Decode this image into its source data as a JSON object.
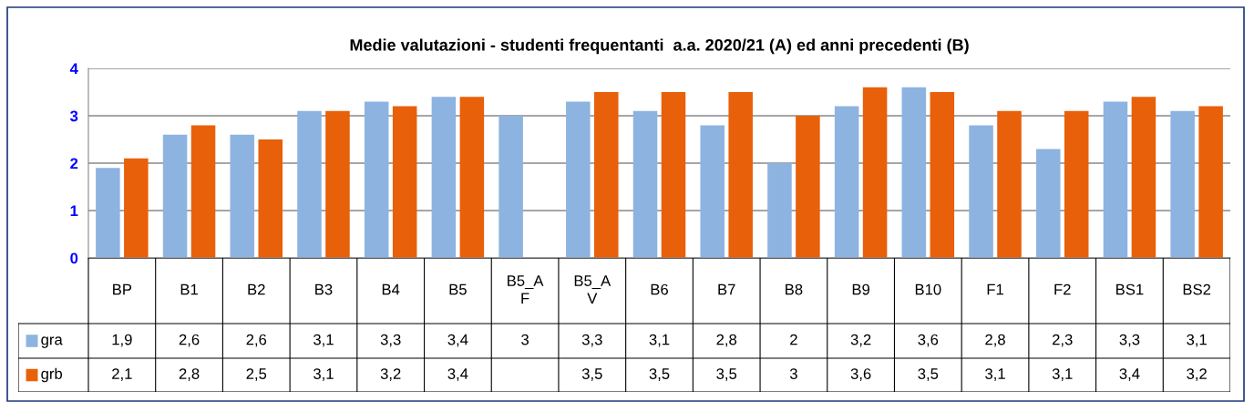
{
  "chart_data": {
    "type": "bar",
    "title": "Medie valutazioni - studenti frequentanti  a.a. 2020/21 (A) ed anni precedenti (B)",
    "categories": [
      "BP",
      "B1",
      "B2",
      "B3",
      "B4",
      "B5",
      "B5_AF",
      "B5_AV",
      "B6",
      "B7",
      "B8",
      "B9",
      "B10",
      "F1",
      "F2",
      "BS1",
      "BS2"
    ],
    "series": [
      {
        "name": "gra",
        "color": "#8db3e0",
        "values": [
          1.9,
          2.6,
          2.6,
          3.1,
          3.3,
          3.4,
          3,
          3.3,
          3.1,
          2.8,
          2,
          3.2,
          3.6,
          2.8,
          2.3,
          3.3,
          3.1
        ],
        "value_labels": [
          "1,9",
          "2,6",
          "2,6",
          "3,1",
          "3,3",
          "3,4",
          "3",
          "3,3",
          "3,1",
          "2,8",
          "2",
          "3,2",
          "3,6",
          "2,8",
          "2,3",
          "3,3",
          "3,1"
        ]
      },
      {
        "name": "grb",
        "color": "#e8600a",
        "values": [
          2.1,
          2.8,
          2.5,
          3.1,
          3.2,
          3.4,
          null,
          3.5,
          3.5,
          3.5,
          3,
          3.6,
          3.5,
          3.1,
          3.1,
          3.4,
          3.2
        ],
        "value_labels": [
          "2,1",
          "2,8",
          "2,5",
          "3,1",
          "3,2",
          "3,4",
          null,
          "3,5",
          "3,5",
          "3,5",
          "3",
          "3,6",
          "3,5",
          "3,1",
          "3,1",
          "3,4",
          "3,2"
        ]
      }
    ],
    "ylim": [
      0,
      4
    ],
    "yticks": [
      0,
      1,
      2,
      3,
      4
    ],
    "grid": "y",
    "legend": "bottom left"
  }
}
